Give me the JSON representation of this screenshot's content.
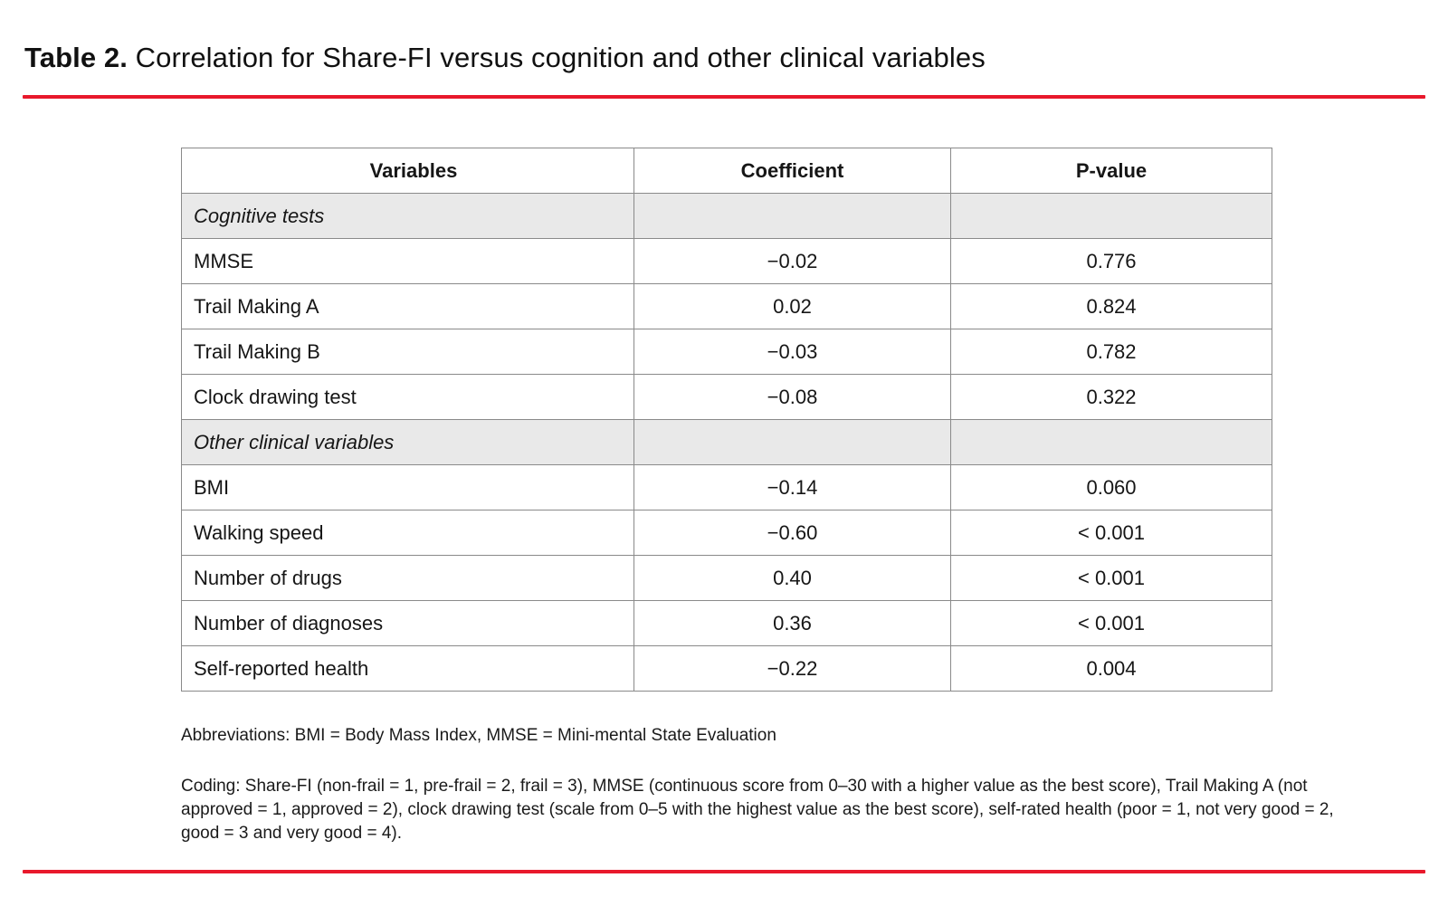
{
  "title": {
    "label": "Table 2.",
    "text": "Correlation for Share-FI versus cognition and other clinical variables"
  },
  "colors": {
    "accent_rule": "#e8192c",
    "section_row_bg": "#e9e9e9",
    "table_border": "#8a8a8a",
    "text": "#161616"
  },
  "table": {
    "headers": [
      "Variables",
      "Coefficient",
      "P-value"
    ],
    "rows": [
      {
        "type": "section",
        "label": "Cognitive tests"
      },
      {
        "type": "data",
        "variable": "MMSE",
        "coefficient": "−0.02",
        "p_value": "0.776"
      },
      {
        "type": "data",
        "variable": "Trail Making A",
        "coefficient": "0.02",
        "p_value": "0.824"
      },
      {
        "type": "data",
        "variable": "Trail Making B",
        "coefficient": "−0.03",
        "p_value": "0.782"
      },
      {
        "type": "data",
        "variable": "Clock drawing test",
        "coefficient": "−0.08",
        "p_value": "0.322"
      },
      {
        "type": "section",
        "label": "Other clinical variables"
      },
      {
        "type": "data",
        "variable": "BMI",
        "coefficient": "−0.14",
        "p_value": "0.060"
      },
      {
        "type": "data",
        "variable": "Walking speed",
        "coefficient": "−0.60",
        "p_value": "< 0.001"
      },
      {
        "type": "data",
        "variable": "Number of drugs",
        "coefficient": "0.40",
        "p_value": "< 0.001"
      },
      {
        "type": "data",
        "variable": "Number of diagnoses",
        "coefficient": "0.36",
        "p_value": "< 0.001"
      },
      {
        "type": "data",
        "variable": "Self-reported health",
        "coefficient": "−0.22",
        "p_value": "0.004"
      }
    ]
  },
  "footnotes": {
    "abbreviations": "Abbreviations: BMI = Body Mass Index, MMSE = Mini-mental State Evaluation",
    "coding": "Coding: Share-FI (non-frail = 1, pre-frail = 2, frail = 3), MMSE (continuous score from 0–30 with a higher value as the best score), Trail Making A (not approved = 1, approved = 2), clock drawing test (scale from 0–5 with the highest value as the best score), self-rated health (poor = 1, not very good = 2, good = 3 and very good = 4)."
  }
}
